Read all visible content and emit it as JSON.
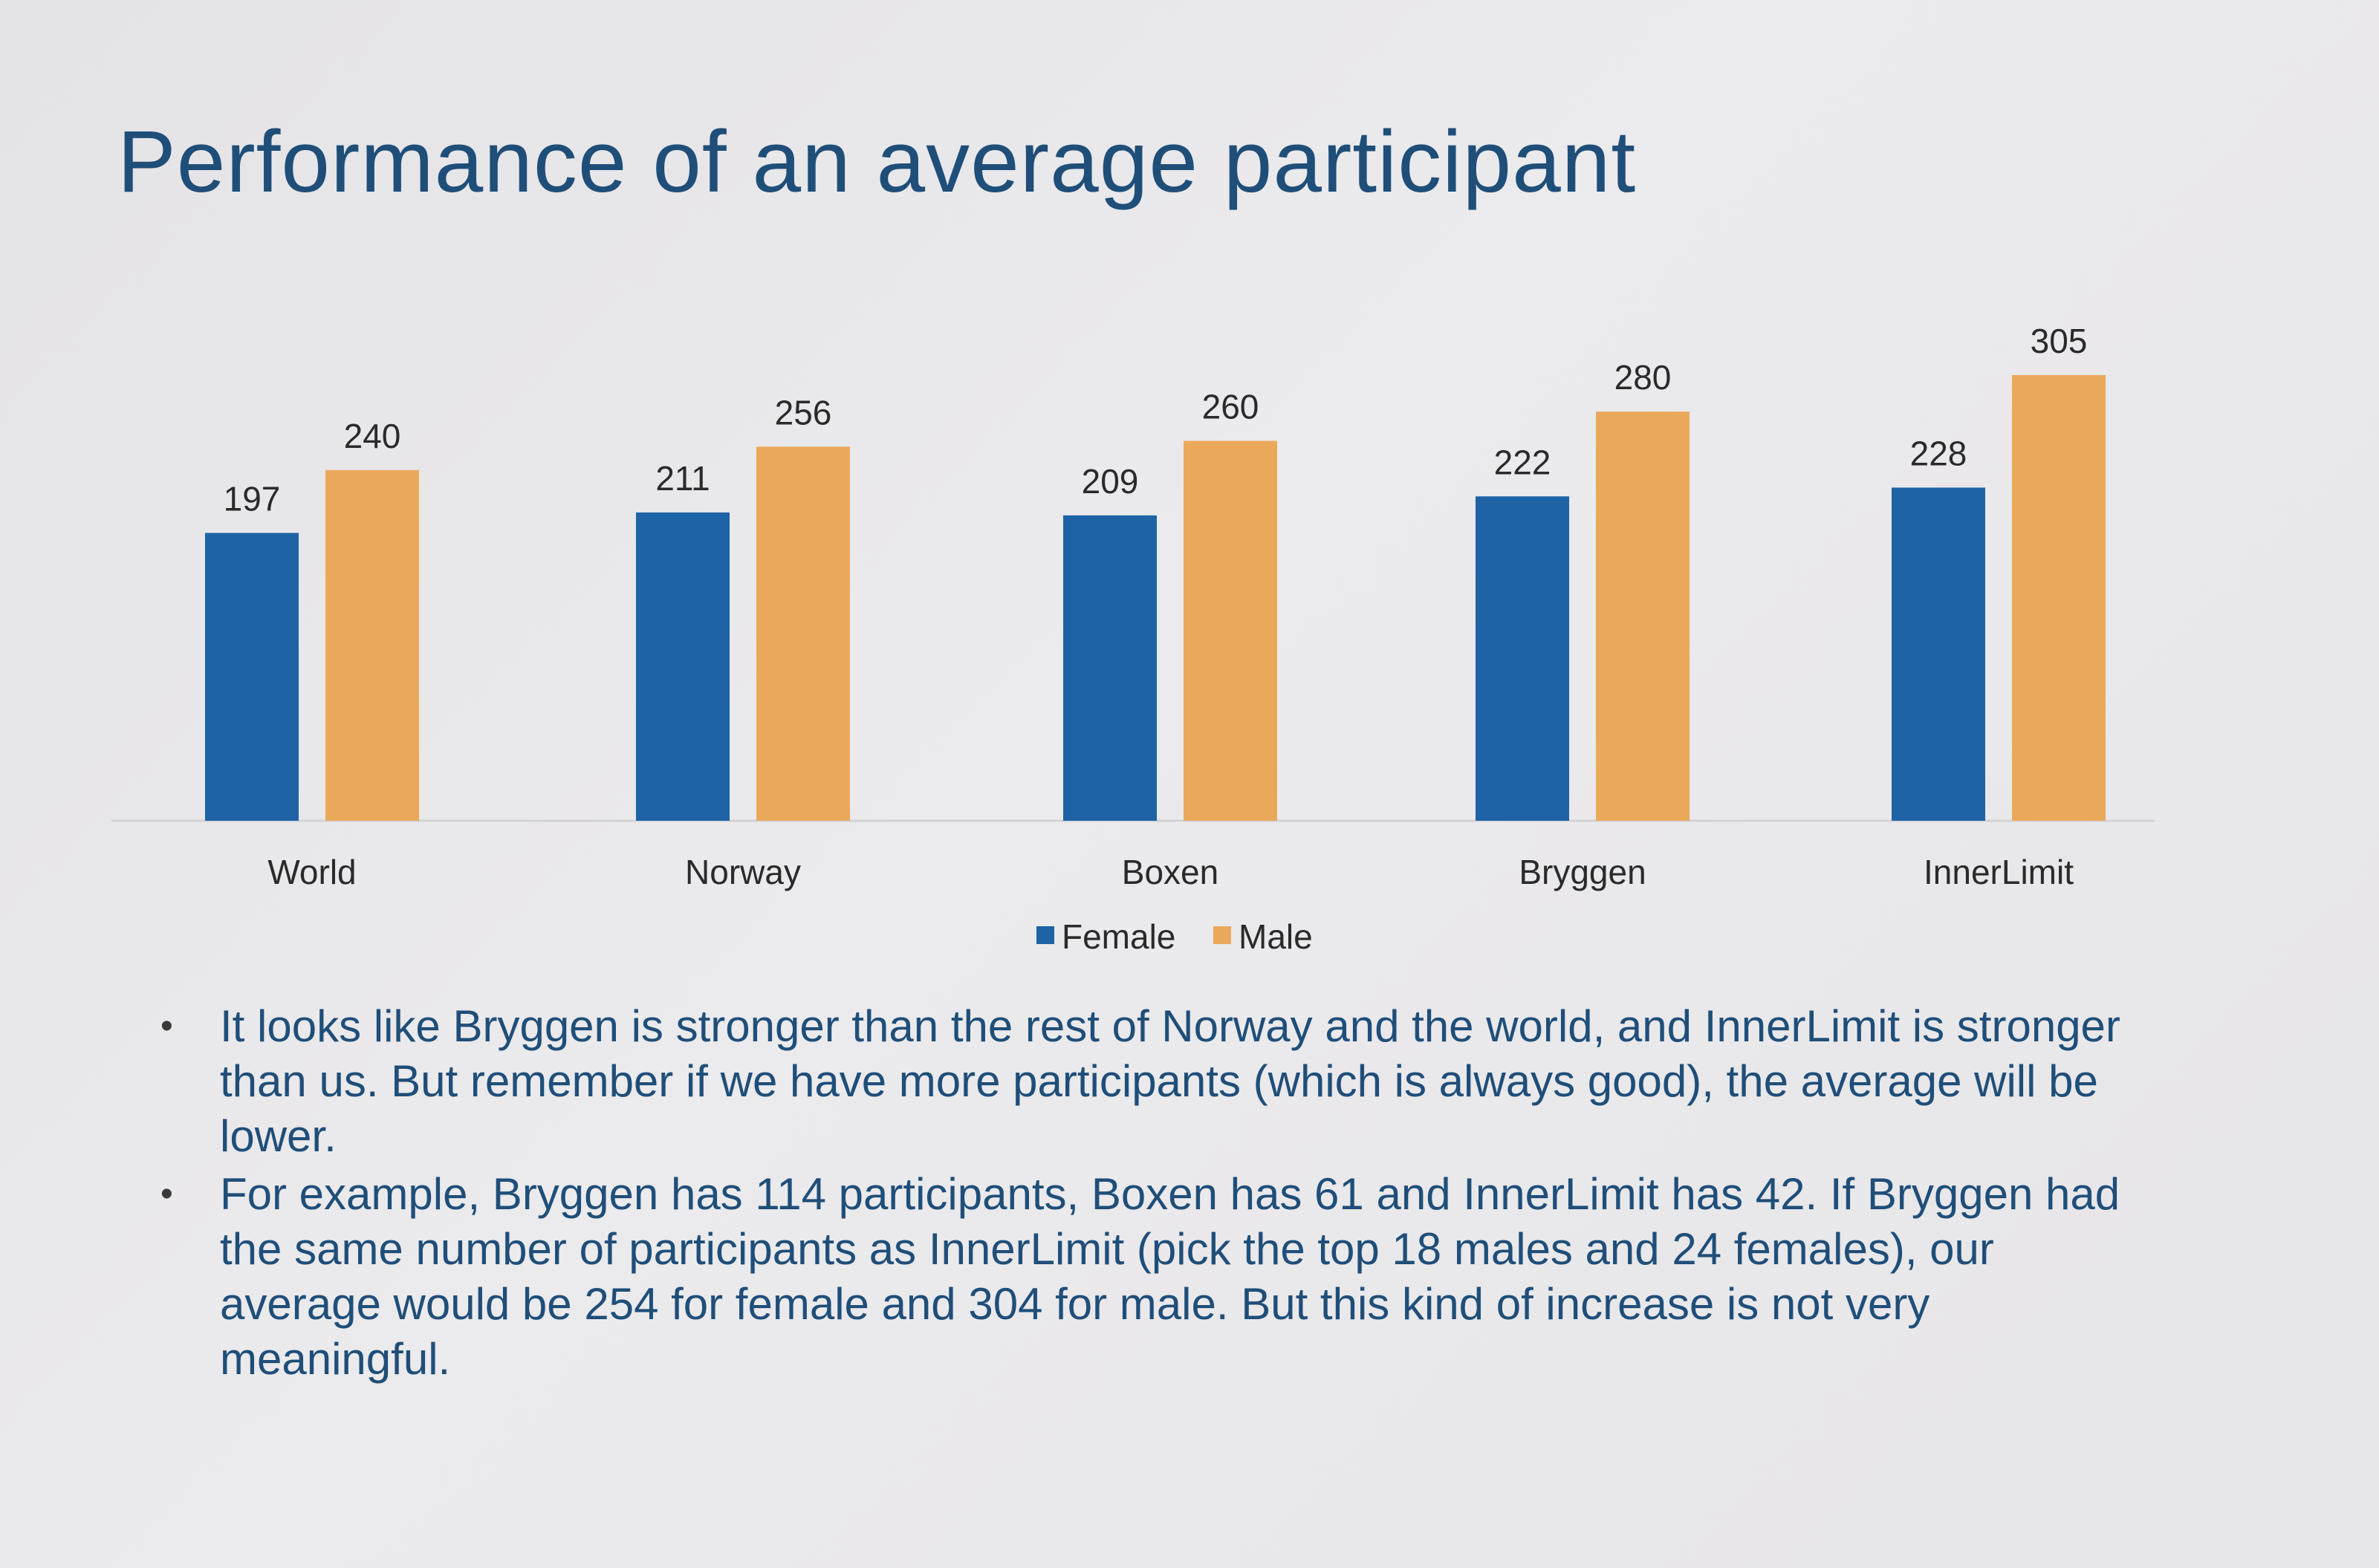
{
  "title": "Performance of an average participant",
  "chart_data": {
    "type": "bar",
    "categories": [
      "World",
      "Norway",
      "Boxen",
      "Bryggen",
      "InnerLimit"
    ],
    "series": [
      {
        "name": "Female",
        "values": [
          197,
          211,
          209,
          222,
          228
        ],
        "color": "#1e63a6"
      },
      {
        "name": "Male",
        "values": [
          240,
          256,
          260,
          280,
          305
        ],
        "color": "#eaa95a"
      }
    ],
    "title": "",
    "xlabel": "",
    "ylabel": "",
    "ylim": [
      0,
      305
    ],
    "grid": false,
    "legend": "bottom-center",
    "data_labels": true
  },
  "bullets": [
    "It looks like Bryggen is stronger than the rest of Norway and the world, and InnerLimit is stronger than us. But remember if we have more participants (which is always good), the average will be lower.",
    "For example, Bryggen has 114 participants, Boxen has 61 and InnerLimit has 42. If Bryggen had the same number of participants as InnerLimit (pick the top 18 males and 24 females), our average would be 254 for female and 304 for male. But this kind of increase is not very meaningful."
  ]
}
